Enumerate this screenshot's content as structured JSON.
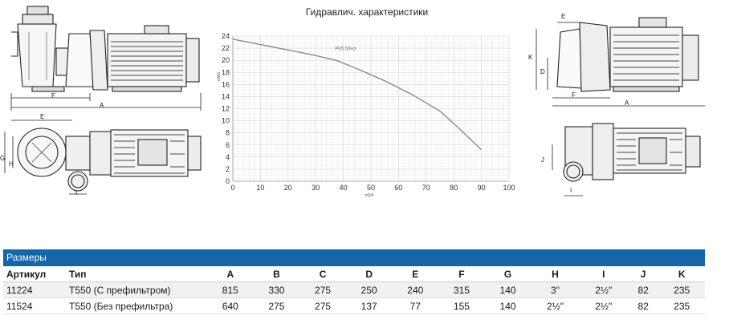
{
  "chart_data": {
    "type": "line",
    "title": "Гидравлич. характеристики",
    "xlabel": "m3/h",
    "ylabel": "mWs",
    "xlim": [
      0,
      100
    ],
    "ylim": [
      0,
      24
    ],
    "x_ticks": [
      "0",
      "10",
      "20",
      "30",
      "40",
      "50",
      "60",
      "70",
      "80",
      "90",
      "100"
    ],
    "y_ticks": [
      "0",
      "2",
      "4",
      "6",
      "8",
      "10",
      "12",
      "14",
      "16",
      "18",
      "20",
      "22",
      "24"
    ],
    "grid": true,
    "series": [
      {
        "name": "P85 50Hz",
        "color": "#8a8a8a",
        "x": [
          0,
          10,
          20,
          30,
          38,
          45,
          55,
          65,
          75,
          82,
          90
        ],
        "y": [
          23.5,
          22.6,
          21.7,
          20.8,
          19.9,
          18.6,
          16.6,
          14.3,
          11.6,
          8.7,
          5.2
        ]
      }
    ]
  },
  "drawing_labels": {
    "front_F": "F",
    "front_A": "A",
    "top_E": "E",
    "top_G": "G",
    "top_H": "H",
    "top_I": "I",
    "side_E": "E",
    "side_K": "K",
    "side_D": "D",
    "side_F": "F",
    "side_A": "A",
    "bot_J": "J",
    "bot_I": "I"
  },
  "dimensions_table": {
    "caption": "Размеры",
    "headers": [
      "Артикул",
      "Тип",
      "A",
      "B",
      "C",
      "D",
      "E",
      "F",
      "G",
      "H",
      "I",
      "J",
      "K"
    ],
    "rows": [
      [
        "11224",
        "T550 (С префильтром)",
        "815",
        "330",
        "275",
        "250",
        "240",
        "315",
        "140",
        "3\"",
        "2½\"",
        "82",
        "235"
      ],
      [
        "11524",
        "T550 (Без префильтра)",
        "640",
        "275",
        "275",
        "137",
        "77",
        "155",
        "140",
        "2½\"",
        "2½\"",
        "82",
        "235"
      ]
    ]
  }
}
